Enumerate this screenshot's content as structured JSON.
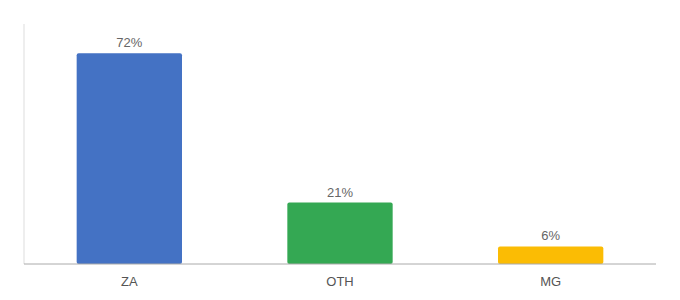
{
  "chart_data": {
    "type": "bar",
    "categories": [
      "ZA",
      "OTH",
      "MG"
    ],
    "values": [
      72,
      21,
      6
    ],
    "value_labels": [
      "72%",
      "21%",
      "6%"
    ],
    "colors": [
      "#4472C4",
      "#34A853",
      "#FBBC04"
    ],
    "ylim": [
      0,
      82
    ],
    "grid": false,
    "data_labels": true,
    "tick_labels": "x"
  }
}
